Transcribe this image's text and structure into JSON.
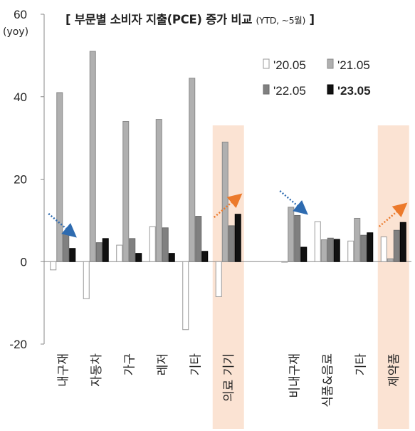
{
  "chart_data": {
    "type": "bar",
    "title": "[ 부문별 소비자 지출(PCE) 증가 비교 ",
    "title_suffix": "(YTD, ~5월)",
    "title_close": " ]",
    "ylabel": "(yoy)",
    "ylim": [
      -20,
      60
    ],
    "yticks": [
      -20,
      0,
      20,
      40,
      60
    ],
    "categories": [
      "내구재",
      "자동차",
      "가구",
      "레저",
      "기타",
      "의료 기기",
      "비내구재",
      "식품&음료",
      "기타",
      "제약품"
    ],
    "category_gap_after_index": 5,
    "series": [
      {
        "name": "'20.05",
        "values": [
          -2,
          -9,
          4,
          8.5,
          -16.5,
          -8.5,
          0,
          9.7,
          5,
          6
        ],
        "color": "#ffffff",
        "stroke": "#999999"
      },
      {
        "name": "'21.05",
        "values": [
          41,
          51,
          34,
          34.5,
          44.5,
          29,
          13.2,
          5.3,
          10.5,
          0.7
        ],
        "color": "#b0b0b0",
        "stroke": "#8a8a8a"
      },
      {
        "name": "'22.05",
        "values": [
          6.8,
          4.6,
          5.6,
          8.2,
          11,
          8.7,
          11.2,
          5.7,
          6.4,
          7.6
        ],
        "color": "#808080",
        "stroke": "#6a6a6a"
      },
      {
        "name": "'23.05",
        "values": [
          3.2,
          5.6,
          2,
          2,
          2.5,
          11.5,
          3.5,
          5.4,
          7,
          9.5
        ],
        "color": "#111111",
        "stroke": "#000000"
      }
    ],
    "highlighted_categories": [
      5,
      9
    ],
    "highlight_color": "#fbe3d3",
    "arrows": [
      {
        "category": 0,
        "direction": "down",
        "color": "#2e6bb0"
      },
      {
        "category": 5,
        "direction": "up",
        "color": "#ec7a2c"
      },
      {
        "category": 6,
        "direction": "down",
        "color": "#2e6bb0"
      },
      {
        "category": 9,
        "direction": "up",
        "color": "#ec7a2c"
      }
    ],
    "legend_position": "top-right",
    "grid": false
  }
}
